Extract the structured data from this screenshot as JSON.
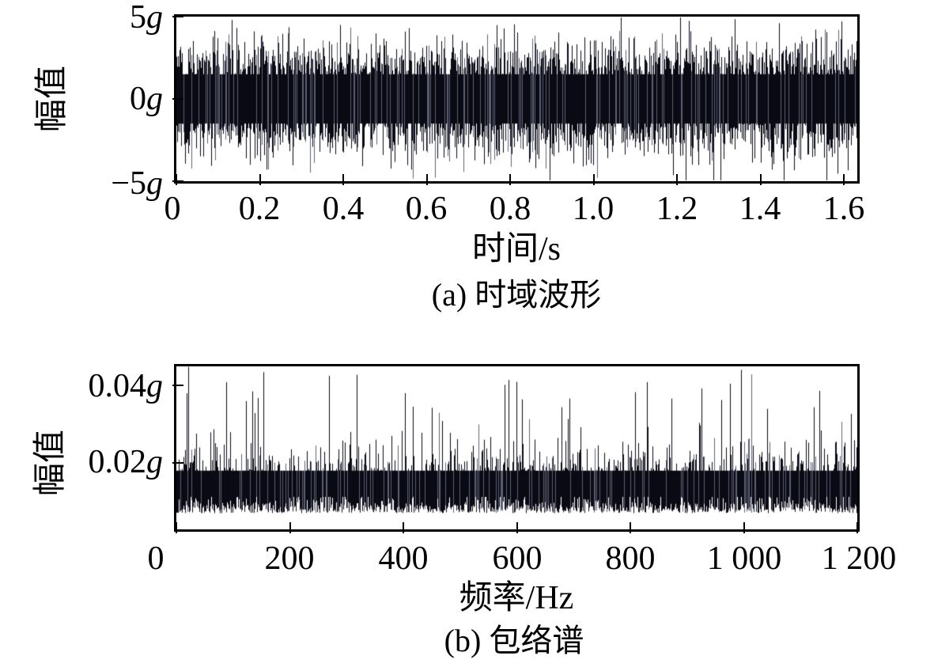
{
  "colors": {
    "trace": "#0a0a14",
    "trace_light": "#5d6072",
    "axis": "#000000",
    "background": "#ffffff",
    "text": "#000000"
  },
  "chart_data": [
    {
      "type": "line",
      "panel": "(a)",
      "caption": "(a) 时域波形",
      "xlabel": "时间/s",
      "ylabel": "幅值",
      "xlim": [
        0,
        1.632
      ],
      "ylim": [
        -5,
        5
      ],
      "grid": false,
      "legend": "none",
      "xticks": {
        "values": [
          0,
          0.2,
          0.4,
          0.6,
          0.8,
          1.0,
          1.2,
          1.4,
          1.6
        ],
        "labels": [
          "0",
          "0.2",
          "0.4",
          "0.6",
          "0.8",
          "1.0",
          "1.2",
          "1.4",
          "1.6"
        ]
      },
      "yticks": {
        "values": [
          5,
          0,
          -5
        ],
        "labels": [
          {
            "v": "5",
            "u": "g"
          },
          {
            "v": "0",
            "u": "g"
          },
          {
            "v": "−5",
            "u": "g"
          }
        ]
      },
      "series": [
        {
          "name": "时域波形 (time-domain vibration signal)",
          "unit": "g",
          "description": "Dense zero-mean broadband random noise over 0–1.63 s; solid black band ≈ ±2.8g with sparse spikes reaching ≈ ±4.9g; no visible periodic impulses.",
          "generator": {
            "kind": "gaussian-column-minmax",
            "seed": 1337,
            "columns": 861,
            "samples_per_column": 8,
            "sigma": 1.5,
            "clip": 4.95,
            "core": 1.5
          }
        }
      ]
    },
    {
      "type": "line",
      "panel": "(b)",
      "caption": "(b) 包络谱",
      "xlabel": "频率/Hz",
      "ylabel": "幅值",
      "xlim": [
        0,
        1200
      ],
      "ylim": [
        0.0028,
        0.045
      ],
      "grid": false,
      "legend": "none",
      "xticks": {
        "values": [
          0,
          200,
          400,
          600,
          800,
          1000,
          1200
        ],
        "labels": [
          "0",
          "200",
          "400",
          "600",
          "800",
          "1 000",
          "1 200"
        ]
      },
      "yticks": {
        "values": [
          0.04,
          0.02
        ],
        "labels": [
          {
            "v": "0.04",
            "u": "g"
          },
          {
            "v": "0.02",
            "u": "g"
          }
        ]
      },
      "series": [
        {
          "name": "包络谱 (envelope spectrum)",
          "unit": "g",
          "description": "Flat broadband noise floor ≈ 0.008g–0.02g across 0–1200 Hz with random peaks up to ≈ 0.045g; no dominant fault characteristic frequency stands out.",
          "generator": {
            "kind": "folded-gaussian-column-minmax",
            "seed": 4242,
            "columns": 861,
            "samples_per_column": 5,
            "base": 0.007,
            "sigma": 0.007,
            "clipTop": 0.0449,
            "floor": 0.0032,
            "coreTop": 0.018,
            "coreBottom": 0.0112,
            "spike_probability": 0.04,
            "spike_min": 0.026,
            "spike_max": 0.0448,
            "forced_spikes": [
              {
                "column": 15,
                "value": 0.0449
              },
              {
                "column": 110,
                "value": 0.0435
              },
              {
                "column": 430,
                "value": 0.041
              },
              {
                "column": 700,
                "value": 0.0405
              }
            ]
          }
        }
      ]
    }
  ]
}
